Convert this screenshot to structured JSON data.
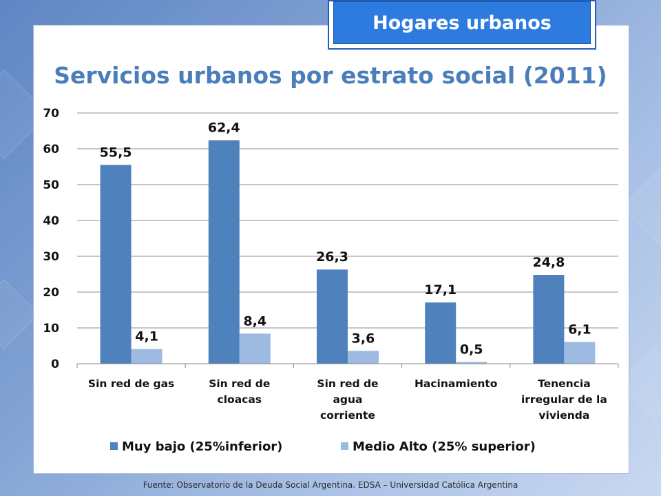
{
  "header": {
    "badge_label": "Hogares urbanos"
  },
  "footer": {
    "source": "Fuente:  Observatorio de  la Deuda Social Argentina. EDSA  – Universidad Católica Argentina"
  },
  "colors": {
    "series_1": "#4f81bd",
    "series_2": "#9dbbe0",
    "title": "#4a7ebb",
    "badge": "#2e7be0"
  },
  "chart_data": {
    "type": "bar",
    "title": "Servicios urbanos por estrato social (2011)",
    "xlabel": "",
    "ylabel": "",
    "ylim": [
      0,
      70
    ],
    "yticks": [
      0,
      10,
      20,
      30,
      40,
      50,
      60,
      70
    ],
    "grid": true,
    "legend_position": "bottom",
    "categories": [
      [
        "Sin red de gas"
      ],
      [
        "Sin red de",
        "cloacas"
      ],
      [
        "Sin red de",
        "agua",
        "corriente"
      ],
      [
        "Hacinamiento"
      ],
      [
        "Tenencia",
        "irregular de la",
        "vivienda"
      ]
    ],
    "series": [
      {
        "name": "Muy bajo (25%inferior)",
        "values": [
          55.5,
          62.4,
          26.3,
          17.1,
          24.8
        ],
        "labels": [
          "55,5",
          "62,4",
          "26,3",
          "17,1",
          "24,8"
        ]
      },
      {
        "name": "Medio Alto (25% superior)",
        "values": [
          4.1,
          8.4,
          3.6,
          0.5,
          6.1
        ],
        "labels": [
          "4,1",
          "8,4",
          "3,6",
          "0,5",
          "6,1"
        ]
      }
    ]
  }
}
